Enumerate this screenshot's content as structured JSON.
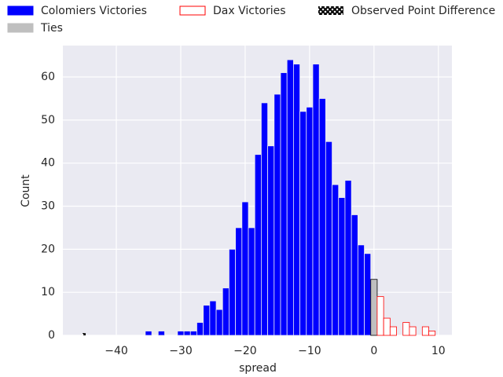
{
  "chart_data": {
    "type": "histogram",
    "xlabel": "spread",
    "ylabel": "Count",
    "bins": [
      -35.5,
      -34.5,
      -33.5,
      -32.5,
      -31.5,
      -30.5,
      -29.5,
      -28.5,
      -27.5,
      -26.5,
      -25.5,
      -24.5,
      -23.5,
      -22.5,
      -21.5,
      -20.5,
      -19.5,
      -18.5,
      -17.5,
      -16.5,
      -15.5,
      -14.5,
      -13.5,
      -12.5,
      -11.5,
      -10.5,
      -9.5,
      -8.5,
      -7.5,
      -6.5,
      -5.5,
      -4.5,
      -3.5,
      -2.5,
      -1.5,
      -0.5,
      0.5,
      1.5,
      2.5,
      3.5,
      4.5,
      5.5,
      6.5,
      7.5,
      8.5,
      9.5
    ],
    "series": [
      {
        "name": "Colomiers Victories",
        "color": "#0000ff",
        "edge": "#eaeaf2",
        "values": [
          1,
          0,
          1,
          0,
          0,
          1,
          1,
          1,
          3,
          7,
          8,
          6,
          11,
          20,
          25,
          31,
          25,
          42,
          54,
          44,
          56,
          61,
          64,
          63,
          52,
          53,
          63,
          55,
          45,
          35,
          32,
          36,
          28,
          21,
          19,
          0,
          0,
          0,
          0,
          0,
          0,
          0,
          0,
          0,
          0
        ]
      },
      {
        "name": "Ties",
        "color": "#bfbfbf",
        "edge": "#000000",
        "values": [
          0,
          0,
          0,
          0,
          0,
          0,
          0,
          0,
          0,
          0,
          0,
          0,
          0,
          0,
          0,
          0,
          0,
          0,
          0,
          0,
          0,
          0,
          0,
          0,
          0,
          0,
          0,
          0,
          0,
          0,
          0,
          0,
          0,
          0,
          0,
          13,
          0,
          0,
          0,
          0,
          0,
          0,
          0,
          0,
          0
        ]
      },
      {
        "name": "Dax Victories",
        "color": "#ffffff",
        "edge": "#ff0000",
        "values": [
          0,
          0,
          0,
          0,
          0,
          0,
          0,
          0,
          0,
          0,
          0,
          0,
          0,
          0,
          0,
          0,
          0,
          0,
          0,
          0,
          0,
          0,
          0,
          0,
          0,
          0,
          0,
          0,
          0,
          0,
          0,
          0,
          0,
          0,
          0,
          0,
          9,
          4,
          2,
          0,
          3,
          2,
          0,
          2,
          1
        ]
      }
    ],
    "observed": {
      "name": "Observed Point Difference",
      "x": -45
    },
    "xlim": [
      -48.3,
      12.1
    ],
    "ylim": [
      0,
      67.3
    ],
    "xticks": [
      {
        "value": -40,
        "label": "−40"
      },
      {
        "value": -30,
        "label": "−30"
      },
      {
        "value": -20,
        "label": "−20"
      },
      {
        "value": -10,
        "label": "−10"
      },
      0,
      10
    ],
    "yticks": [
      0,
      10,
      20,
      30,
      40,
      50,
      60
    ],
    "grid": true
  }
}
